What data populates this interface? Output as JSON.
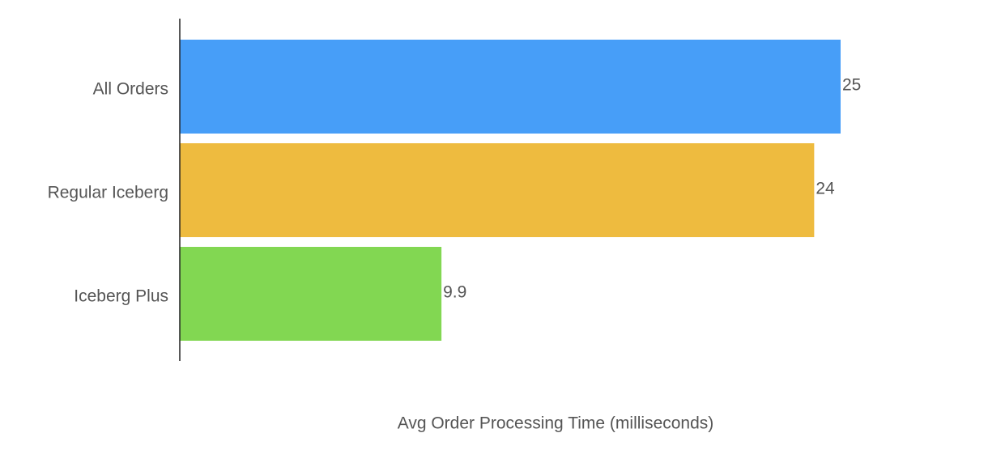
{
  "chart_data": {
    "type": "hbar",
    "x_label": "Avg Order Processing Time (milliseconds)",
    "categories": [
      "All Orders",
      "Regular Iceberg",
      "Iceberg Plus"
    ],
    "values": [
      25,
      24,
      9.9
    ],
    "colors": [
      "#479ef8",
      "#eebb3f",
      "#82d752"
    ],
    "xlim": [
      0,
      25
    ]
  }
}
